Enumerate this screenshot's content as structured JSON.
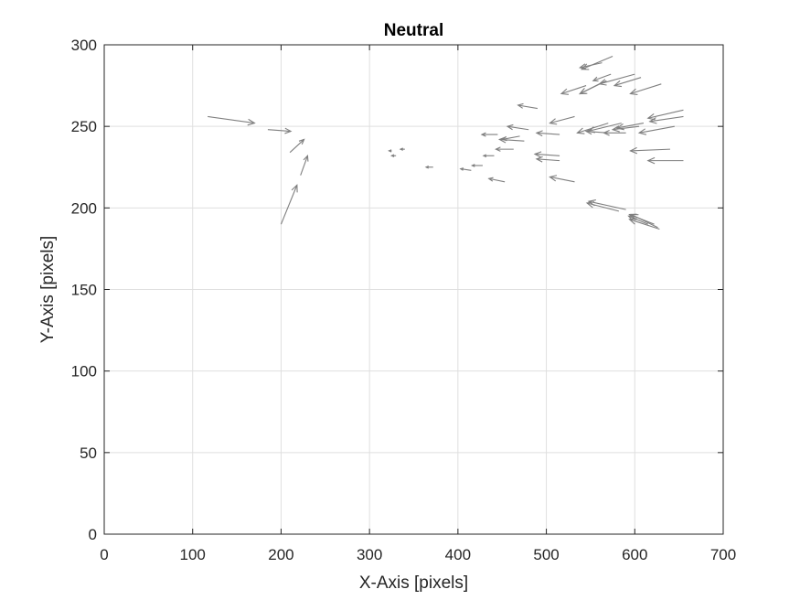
{
  "chart_data": {
    "type": "quiver",
    "title": "Neutral",
    "xlabel": "X-Axis [pixels]",
    "ylabel": "Y-Axis [pixels]",
    "xlim": [
      0,
      700
    ],
    "ylim": [
      0,
      300
    ],
    "xticks": [
      0,
      100,
      200,
      300,
      400,
      500,
      600,
      700
    ],
    "yticks": [
      0,
      50,
      100,
      150,
      200,
      250,
      300
    ],
    "grid": true,
    "arrow_color": "#7f7f7f",
    "vectors": [
      {
        "x": 117,
        "y": 256,
        "u": 53,
        "v": -4
      },
      {
        "x": 185,
        "y": 248,
        "u": 26,
        "v": -1
      },
      {
        "x": 210,
        "y": 234,
        "u": 16,
        "v": 8
      },
      {
        "x": 222,
        "y": 220,
        "u": 8,
        "v": 12
      },
      {
        "x": 200,
        "y": 190,
        "u": 18,
        "v": 24
      },
      {
        "x": 325,
        "y": 235,
        "u": -3,
        "v": 0
      },
      {
        "x": 330,
        "y": 232,
        "u": -5,
        "v": 0
      },
      {
        "x": 340,
        "y": 236,
        "u": -5,
        "v": 0
      },
      {
        "x": 372,
        "y": 225,
        "u": -8,
        "v": 0
      },
      {
        "x": 415,
        "y": 223,
        "u": -12,
        "v": 1
      },
      {
        "x": 428,
        "y": 226,
        "u": -12,
        "v": 0
      },
      {
        "x": 441,
        "y": 232,
        "u": -12,
        "v": 0
      },
      {
        "x": 445,
        "y": 245,
        "u": -18,
        "v": 0
      },
      {
        "x": 453,
        "y": 216,
        "u": -18,
        "v": 2
      },
      {
        "x": 463,
        "y": 236,
        "u": -20,
        "v": 0
      },
      {
        "x": 470,
        "y": 244,
        "u": -20,
        "v": -2
      },
      {
        "x": 475,
        "y": 241,
        "u": -28,
        "v": 1
      },
      {
        "x": 480,
        "y": 248,
        "u": -24,
        "v": 2
      },
      {
        "x": 490,
        "y": 261,
        "u": -22,
        "v": 2
      },
      {
        "x": 515,
        "y": 245,
        "u": -26,
        "v": 1
      },
      {
        "x": 515,
        "y": 232,
        "u": -28,
        "v": 1
      },
      {
        "x": 515,
        "y": 229,
        "u": -26,
        "v": 1
      },
      {
        "x": 532,
        "y": 256,
        "u": -28,
        "v": -4
      },
      {
        "x": 532,
        "y": 216,
        "u": -28,
        "v": 3
      },
      {
        "x": 545,
        "y": 275,
        "u": -28,
        "v": -5
      },
      {
        "x": 560,
        "y": 276,
        "u": -22,
        "v": -6
      },
      {
        "x": 570,
        "y": 246,
        "u": -25,
        "v": 1
      },
      {
        "x": 570,
        "y": 252,
        "u": -35,
        "v": -6
      },
      {
        "x": 568,
        "y": 278,
        "u": -30,
        "v": -8
      },
      {
        "x": 573,
        "y": 282,
        "u": -20,
        "v": -4
      },
      {
        "x": 575,
        "y": 293,
        "u": -35,
        "v": -8
      },
      {
        "x": 563,
        "y": 289,
        "u": -25,
        "v": -3
      },
      {
        "x": 585,
        "y": 252,
        "u": -38,
        "v": -5
      },
      {
        "x": 590,
        "y": 246,
        "u": -25,
        "v": 0
      },
      {
        "x": 605,
        "y": 250,
        "u": -30,
        "v": -2
      },
      {
        "x": 610,
        "y": 252,
        "u": -30,
        "v": -3
      },
      {
        "x": 600,
        "y": 282,
        "u": -40,
        "v": -6
      },
      {
        "x": 607,
        "y": 280,
        "u": -30,
        "v": -5
      },
      {
        "x": 630,
        "y": 276,
        "u": -35,
        "v": -6
      },
      {
        "x": 645,
        "y": 250,
        "u": -40,
        "v": -4
      },
      {
        "x": 655,
        "y": 260,
        "u": -40,
        "v": -5
      },
      {
        "x": 655,
        "y": 256,
        "u": -38,
        "v": -3
      },
      {
        "x": 640,
        "y": 236,
        "u": -45,
        "v": -1
      },
      {
        "x": 655,
        "y": 229,
        "u": -40,
        "v": 0
      },
      {
        "x": 582,
        "y": 198,
        "u": -36,
        "v": 5
      },
      {
        "x": 590,
        "y": 199,
        "u": -42,
        "v": 5
      },
      {
        "x": 615,
        "y": 190,
        "u": -22,
        "v": 5
      },
      {
        "x": 622,
        "y": 190,
        "u": -28,
        "v": 6
      },
      {
        "x": 626,
        "y": 188,
        "u": -30,
        "v": 8
      },
      {
        "x": 628,
        "y": 187,
        "u": -34,
        "v": 6
      }
    ]
  }
}
